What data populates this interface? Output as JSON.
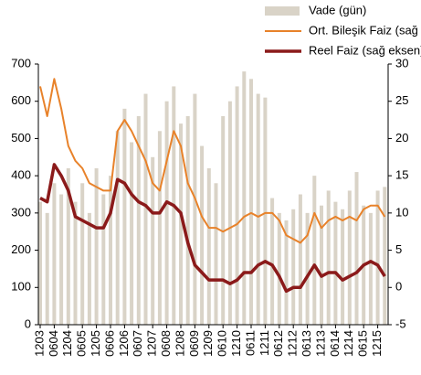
{
  "chart_data": {
    "type": "bar",
    "legend": "top",
    "categories": [
      "1203",
      null,
      "0604",
      null,
      "1204",
      null,
      "0605",
      null,
      "1205",
      null,
      "0606",
      null,
      "1206",
      null,
      "0607",
      null,
      "1207",
      null,
      "0608",
      null,
      "1208",
      null,
      "0609",
      null,
      "1209",
      null,
      "0610",
      null,
      "1210",
      null,
      "0611",
      null,
      "1211",
      null,
      "0612",
      null,
      "1212",
      null,
      "0613",
      null,
      "1213",
      null,
      "0614",
      null,
      "1214",
      null,
      "0615",
      null,
      "1215",
      null
    ],
    "series": [
      {
        "name": "Vade (gün)",
        "type": "bar",
        "axis": "y",
        "color": "#d9d3c7",
        "values": [
          330,
          300,
          380,
          350,
          420,
          330,
          380,
          300,
          420,
          350,
          400,
          520,
          580,
          490,
          560,
          620,
          450,
          520,
          600,
          640,
          540,
          560,
          620,
          480,
          420,
          380,
          560,
          600,
          640,
          680,
          660,
          620,
          610,
          340,
          300,
          280,
          310,
          350,
          300,
          400,
          320,
          360,
          330,
          310,
          360,
          410,
          320,
          300,
          360,
          370
        ]
      },
      {
        "name": "Ort. Bileşik Faiz (sağ eksen)",
        "type": "line",
        "axis": "y2",
        "color": "#e8822a",
        "values": [
          27,
          23,
          28,
          24,
          19,
          17,
          16,
          14,
          13.5,
          13,
          13,
          21,
          22.5,
          21,
          19,
          17,
          14,
          13,
          17,
          21,
          19,
          14,
          12,
          9.5,
          8,
          8,
          7.5,
          8,
          8.5,
          9.5,
          10,
          9.5,
          10,
          10,
          9,
          7,
          6.5,
          6,
          7,
          10,
          8,
          9,
          9.5,
          9,
          9.5,
          9,
          10.5,
          11,
          11,
          9.5
        ]
      },
      {
        "name": "Reel Faiz (sağ eksen)",
        "type": "line",
        "axis": "y2",
        "color": "#8b1a1a",
        "values": [
          12,
          11.5,
          16.5,
          15,
          13,
          9.5,
          9,
          8.5,
          8,
          8,
          10,
          14.5,
          14,
          12.5,
          11.5,
          11,
          10,
          10,
          11.5,
          11,
          10,
          6,
          3,
          2,
          1,
          1,
          1,
          0.5,
          1,
          2,
          2,
          3,
          3.5,
          3,
          1.5,
          -0.5,
          0,
          0,
          1.5,
          3,
          1.5,
          2,
          2,
          1,
          1.5,
          2,
          3,
          3.5,
          3,
          1.5
        ]
      }
    ],
    "ylim": [
      0,
      700
    ],
    "yticks": [
      0,
      100,
      200,
      300,
      400,
      500,
      600,
      700
    ],
    "y2lim": [
      -5,
      30
    ],
    "y2ticks": [
      -5,
      0,
      5,
      10,
      15,
      20,
      25,
      30
    ]
  }
}
